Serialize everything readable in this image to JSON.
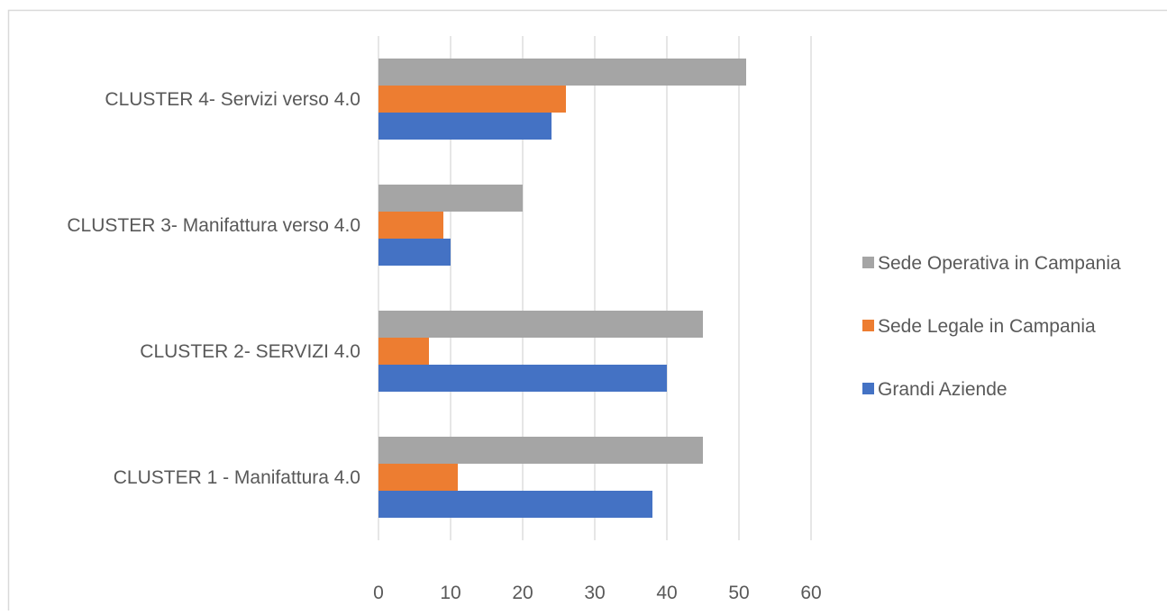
{
  "chart_data": {
    "type": "bar",
    "orientation": "horizontal",
    "categories": [
      "CLUSTER 1 - Manifattura 4.0",
      "CLUSTER 2- SERVIZI 4.0",
      "CLUSTER 3- Manifattura verso 4.0",
      "CLUSTER 4- Servizi verso 4.0"
    ],
    "series": [
      {
        "name": "Grandi Aziende",
        "color": "#4472C4",
        "values": [
          38,
          40,
          10,
          24
        ]
      },
      {
        "name": "Sede Legale in Campania",
        "color": "#ED7D31",
        "values": [
          11,
          7,
          9,
          26
        ]
      },
      {
        "name": "Sede Operativa in Campania",
        "color": "#A5A5A5",
        "values": [
          45,
          45,
          20,
          51
        ]
      }
    ],
    "xlim": [
      0,
      60
    ],
    "xticks": [
      "0",
      "10",
      "20",
      "30",
      "40",
      "50",
      "60"
    ],
    "grid": "vertical",
    "legend_position": "right",
    "title": "",
    "xlabel": "",
    "ylabel": ""
  }
}
